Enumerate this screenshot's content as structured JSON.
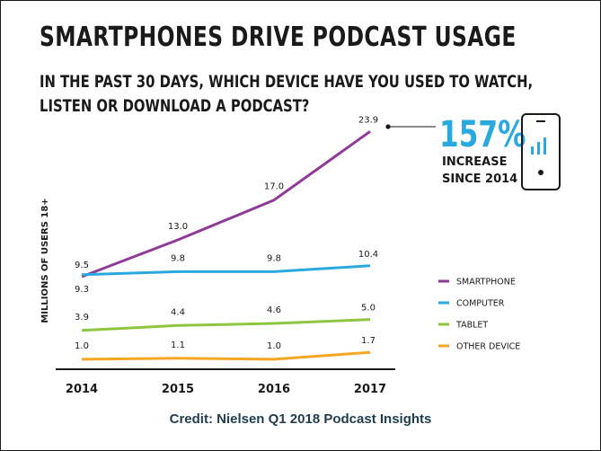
{
  "chart_data": {
    "type": "line",
    "title": "SMARTPHONES DRIVE PODCAST USAGE",
    "subtitle_lines": [
      "IN THE PAST 30 DAYS, WHICH DEVICE HAVE YOU USED TO WATCH,",
      "LISTEN OR DOWNLOAD A PODCAST?"
    ],
    "ylabel": "MILLIONS OF USERS 18+",
    "categories": [
      "2014",
      "2015",
      "2016",
      "2017"
    ],
    "ylim": [
      0,
      26
    ],
    "grid": false,
    "legend_position": "right",
    "series": [
      {
        "name": "SMARTPHONE",
        "color": "#8e3a96",
        "values": [
          9.3,
          13.0,
          17.0,
          23.9
        ],
        "labels": [
          "9.3",
          "13.0",
          "17.0",
          "23.9"
        ]
      },
      {
        "name": "COMPUTER",
        "color": "#29a9e0",
        "values": [
          9.5,
          9.8,
          9.8,
          10.4
        ],
        "labels": [
          "9.5",
          "9.8",
          "9.8",
          "10.4"
        ]
      },
      {
        "name": "TABLET",
        "color": "#8dc63f",
        "values": [
          3.9,
          4.4,
          4.6,
          5.0
        ],
        "labels": [
          "3.9",
          "4.4",
          "4.6",
          "5.0"
        ]
      },
      {
        "name": "OTHER DEVICE",
        "color": "#f5a623",
        "values": [
          1.0,
          1.1,
          1.0,
          1.7
        ],
        "labels": [
          "1.0",
          "1.1",
          "1.0",
          "1.7"
        ]
      }
    ],
    "callout": {
      "value": "157%",
      "line1": "INCREASE",
      "line2": "SINCE 2014"
    }
  },
  "icons": {
    "callout_icon": "smartphone-bar-chart-icon"
  },
  "credit": "Credit: Nielsen Q1 2018 Podcast Insights"
}
